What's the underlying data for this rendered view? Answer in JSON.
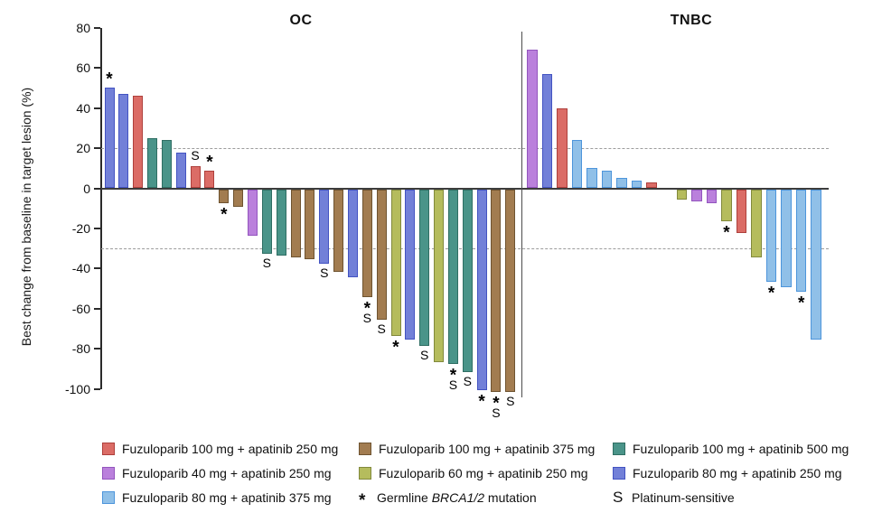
{
  "chart_data": {
    "type": "bar",
    "subtype": "waterfall",
    "ylabel": "Best change from baseline in target lesion (%)",
    "ylim": [
      -100,
      80
    ],
    "yticks": [
      80,
      60,
      40,
      20,
      0,
      -20,
      -40,
      -60,
      -80,
      -100
    ],
    "reference_lines": [
      20,
      -30
    ],
    "grid": "dashed-reference-only",
    "legend_position": "bottom",
    "marker_defs": {
      "star": {
        "symbol": "*",
        "meaning": "Germline BRCA1/2 mutation"
      },
      "S": {
        "symbol": "S",
        "meaning": "Platinum-sensitive"
      }
    },
    "series": {
      "f100a250": {
        "label": "Fuzuloparib 100 mg + apatinib 250 mg",
        "fill": "#DB6C66",
        "border": "#AE403C"
      },
      "f100a375": {
        "label": "Fuzuloparib 100 mg + apatinib 375 mg",
        "fill": "#A27C50",
        "border": "#6E5330"
      },
      "f100a500": {
        "label": "Fuzuloparib 100 mg + apatinib 500 mg",
        "fill": "#4A9489",
        "border": "#2F6E63"
      },
      "f40a250": {
        "label": "Fuzuloparib 40 mg + apatinib 250 mg",
        "fill": "#BA80DC",
        "border": "#9355BE"
      },
      "f60a250": {
        "label": "Fuzuloparib 60 mg + apatinib 250 mg",
        "fill": "#B5BC5D",
        "border": "#81893C"
      },
      "f80a250": {
        "label": "Fuzuloparib 80 mg + apatinib 250 mg",
        "fill": "#7280D8",
        "border": "#4353C2"
      },
      "f80a375": {
        "label": "Fuzuloparib 80 mg + apatinib 375 mg",
        "fill": "#90C0E8",
        "border": "#4D95DB"
      }
    },
    "panels": [
      {
        "title": "OC",
        "bars": [
          {
            "v": 50,
            "s": "f80a250",
            "m": [
              "star"
            ]
          },
          {
            "v": 47,
            "s": "f80a250",
            "m": []
          },
          {
            "v": 46,
            "s": "f100a250",
            "m": []
          },
          {
            "v": 25,
            "s": "f100a500",
            "m": []
          },
          {
            "v": 24,
            "s": "f100a500",
            "m": []
          },
          {
            "v": 18,
            "s": "f80a250",
            "m": []
          },
          {
            "v": 11,
            "s": "f100a250",
            "m": [
              "S"
            ]
          },
          {
            "v": 9,
            "s": "f100a250",
            "m": [
              "star"
            ]
          },
          {
            "v": -7,
            "s": "f100a375",
            "m": [
              "star"
            ]
          },
          {
            "v": -9,
            "s": "f100a375",
            "m": []
          },
          {
            "v": -23,
            "s": "f40a250",
            "m": []
          },
          {
            "v": -32,
            "s": "f100a500",
            "m": [
              "S"
            ]
          },
          {
            "v": -33,
            "s": "f100a500",
            "m": []
          },
          {
            "v": -34,
            "s": "f100a375",
            "m": []
          },
          {
            "v": -35,
            "s": "f100a375",
            "m": []
          },
          {
            "v": -37,
            "s": "f80a250",
            "m": [
              "S"
            ]
          },
          {
            "v": -41,
            "s": "f100a375",
            "m": []
          },
          {
            "v": -44,
            "s": "f80a250",
            "m": []
          },
          {
            "v": -54,
            "s": "f100a375",
            "m": [
              "star",
              "S"
            ]
          },
          {
            "v": -65,
            "s": "f100a375",
            "m": [
              "S"
            ]
          },
          {
            "v": -73,
            "s": "f60a250",
            "m": [
              "star"
            ]
          },
          {
            "v": -75,
            "s": "f80a250",
            "m": []
          },
          {
            "v": -78,
            "s": "f100a500",
            "m": [
              "S"
            ]
          },
          {
            "v": -86,
            "s": "f60a250",
            "m": []
          },
          {
            "v": -87,
            "s": "f100a500",
            "m": [
              "star",
              "S"
            ]
          },
          {
            "v": -91,
            "s": "f100a500",
            "m": [
              "S"
            ]
          },
          {
            "v": -100,
            "s": "f80a250",
            "m": [
              "star"
            ]
          },
          {
            "v": -101,
            "s": "f100a375",
            "m": [
              "star",
              "S"
            ]
          },
          {
            "v": -101,
            "s": "f100a375",
            "m": [
              "S"
            ]
          }
        ]
      },
      {
        "title": "TNBC",
        "gap_after_index": 8,
        "bars": [
          {
            "v": 69,
            "s": "f40a250",
            "m": []
          },
          {
            "v": 57,
            "s": "f80a250",
            "m": []
          },
          {
            "v": 40,
            "s": "f100a250",
            "m": []
          },
          {
            "v": 24,
            "s": "f80a375",
            "m": []
          },
          {
            "v": 10,
            "s": "f80a375",
            "m": []
          },
          {
            "v": 9,
            "s": "f80a375",
            "m": []
          },
          {
            "v": 5,
            "s": "f80a375",
            "m": []
          },
          {
            "v": 4,
            "s": "f80a375",
            "m": []
          },
          {
            "v": 3,
            "s": "f100a250",
            "m": []
          },
          {
            "v": -5,
            "s": "f60a250",
            "m": []
          },
          {
            "v": -6,
            "s": "f40a250",
            "m": []
          },
          {
            "v": -7,
            "s": "f40a250",
            "m": []
          },
          {
            "v": -16,
            "s": "f60a250",
            "m": [
              "star"
            ]
          },
          {
            "v": -22,
            "s": "f100a250",
            "m": []
          },
          {
            "v": -34,
            "s": "f60a250",
            "m": []
          },
          {
            "v": -46,
            "s": "f80a375",
            "m": [
              "star"
            ]
          },
          {
            "v": -49,
            "s": "f80a375",
            "m": []
          },
          {
            "v": -51,
            "s": "f80a375",
            "m": [
              "star"
            ]
          },
          {
            "v": -75,
            "s": "f80a375",
            "m": []
          }
        ]
      }
    ],
    "legend": {
      "columns": [
        [
          "f100a250",
          "f40a250",
          "f80a375"
        ],
        [
          "f100a375",
          "f60a250",
          "star"
        ],
        [
          "f100a500",
          "f80a250",
          "S"
        ]
      ],
      "star_symbol": "*",
      "star_label_parts": [
        {
          "t": "Germline "
        },
        {
          "t": "BRCA1/2",
          "i": true
        },
        {
          "t": " mutation"
        }
      ],
      "s_symbol": "S",
      "s_label": "Platinum-sensitive"
    }
  }
}
